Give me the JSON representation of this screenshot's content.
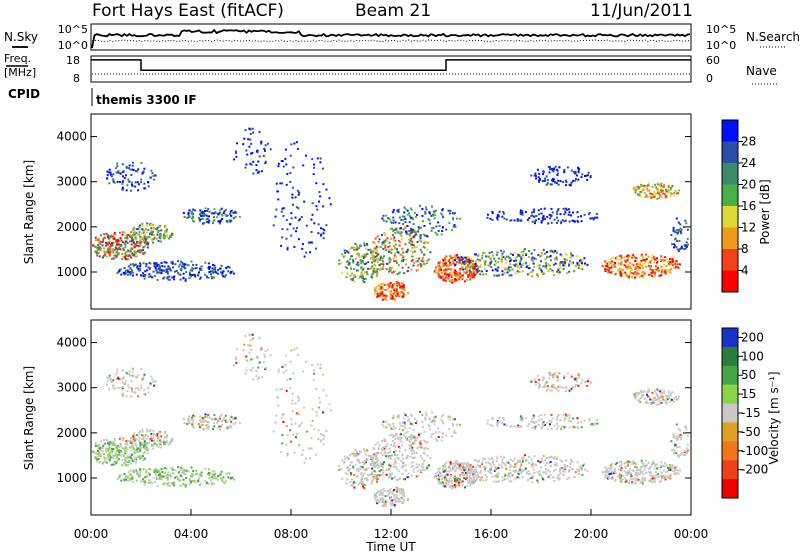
{
  "header": {
    "title": "Fort Hays East (fitACF)",
    "beam": "Beam 21",
    "date": "11/Jun/2011"
  },
  "left_labels": {
    "nsky": "N.Sky",
    "freq": "Freq.",
    "mhz": "[MHz]",
    "cpid": "CPID"
  },
  "right_labels": {
    "nsearch": "N.Search",
    "nave": "Nave"
  },
  "cpid_value": "themis 3300 IF",
  "chart_data": [
    {
      "type": "line",
      "name": "noise-panel",
      "series": [
        {
          "name": "N.Sky"
        },
        {
          "name": "N.Search"
        }
      ],
      "left_ticks": [
        "10^5",
        "10^0"
      ],
      "right_ticks": [
        "10^5",
        "10^0"
      ]
    },
    {
      "type": "line",
      "name": "freq-panel",
      "series": [
        {
          "name": "Freq.",
          "x": [
            0,
            2,
            2,
            14.2,
            14.2,
            24
          ],
          "y": [
            16.5,
            16.5,
            12.5,
            12.5,
            16.5,
            16.5
          ]
        },
        {
          "name": "Nave"
        }
      ],
      "left_ticks": [
        "18",
        "8"
      ],
      "right_ticks": [
        "60",
        "0"
      ]
    },
    {
      "type": "heatmap",
      "name": "power-panel",
      "ylabel": "Slant Range [km]",
      "yticks": [
        "1000",
        "2000",
        "3000",
        "4000"
      ],
      "ylim": [
        180,
        4500
      ],
      "colorbar": {
        "label": "Power [dB]",
        "ticks": [
          "4",
          "8",
          "12",
          "16",
          "20",
          "24",
          "28"
        ],
        "colors": [
          "#0010ff",
          "#2a4ea8",
          "#3c8a6a",
          "#48b048",
          "#e0d838",
          "#f29a1c",
          "#f04418",
          "#ff0000"
        ]
      }
    },
    {
      "type": "heatmap",
      "name": "velocity-panel",
      "ylabel": "Slant Range [km]",
      "yticks": [
        "1000",
        "2000",
        "3000",
        "4000"
      ],
      "ylim": [
        180,
        4500
      ],
      "colorbar": {
        "label": "Velocity [m s⁻¹]",
        "ticks": [
          "200",
          "100",
          "50",
          "15",
          "-15",
          "-50",
          "-100",
          "-200"
        ],
        "colors": [
          "#1832c8",
          "#2a7c3a",
          "#46a646",
          "#8ad44a",
          "#c8c8c8",
          "#e0a020",
          "#f07818",
          "#f04018",
          "#ee0000"
        ]
      }
    }
  ],
  "xaxis": {
    "label": "Time UT",
    "ticks": [
      "00:00",
      "04:00",
      "08:00",
      "12:00",
      "16:00",
      "20:00",
      "00:00"
    ]
  }
}
